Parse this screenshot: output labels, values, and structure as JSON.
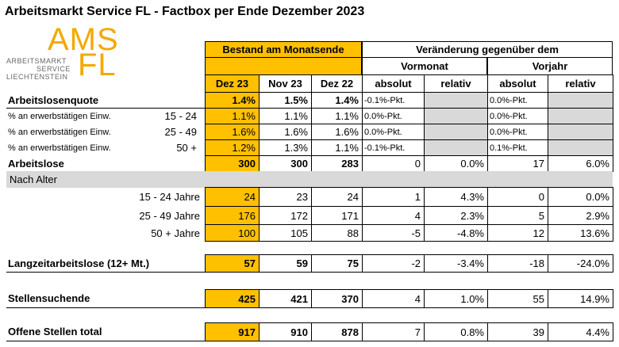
{
  "title": "Arbeitsmarkt Service FL - Factbox per Ende Dezember 2023",
  "logo": {
    "main": "AMS",
    "sub": "FL",
    "lines": [
      "ARBEITSMARKT",
      "SERVICE",
      "LIECHTENSTEIN"
    ]
  },
  "table": {
    "header": {
      "group1": "Bestand am Monatsende",
      "group2": "Veränderung gegenüber dem",
      "sub1": "Vormonat",
      "sub2": "Vorjahr",
      "columns": [
        "Dez 23",
        "Nov 23",
        "Dez 22",
        "absolut",
        "relativ",
        "absolut",
        "relativ"
      ]
    },
    "rows": [
      {
        "label": "Arbeitslosenquote",
        "cells": [
          "1.4%",
          "1.5%",
          "1.4%",
          "-0.1%-Pkt.",
          null,
          "0.0%-Pkt.",
          null
        ]
      },
      {
        "label": "% an erwerbstätigen Einw.",
        "sublabel": "15 - 24",
        "cells": [
          "1.1%",
          "1.1%",
          "1.1%",
          "0.0%-Pkt.",
          null,
          "0.0%-Pkt.",
          null
        ]
      },
      {
        "label": "% an erwerbstätigen Einw.",
        "sublabel": "25 - 49",
        "cells": [
          "1.6%",
          "1.6%",
          "1.6%",
          "0.0%-Pkt.",
          null,
          "0.0%-Pkt.",
          null
        ]
      },
      {
        "label": "% an erwerbstätigen Einw.",
        "sublabel": "50 +",
        "cells": [
          "1.2%",
          "1.3%",
          "1.1%",
          "-0.1%-Pkt.",
          null,
          "0.1%-Pkt.",
          null
        ]
      },
      {
        "label": "Arbeitslose",
        "cells": [
          "300",
          "300",
          "283",
          "0",
          "0.0%",
          "17",
          "6.0%"
        ]
      },
      {
        "label": "Nach Alter"
      },
      {
        "label": "15 - 24 Jahre",
        "cells": [
          "24",
          "23",
          "24",
          "1",
          "4.3%",
          "0",
          "0.0%"
        ]
      },
      {
        "label": "25 - 49 Jahre",
        "cells": [
          "176",
          "172",
          "171",
          "4",
          "2.3%",
          "5",
          "2.9%"
        ]
      },
      {
        "label": "50 + Jahre",
        "cells": [
          "100",
          "105",
          "88",
          "-5",
          "-4.8%",
          "12",
          "13.6%"
        ]
      },
      {
        "label": "Langzeitarbeitslose (12+ Mt.)",
        "cells": [
          "57",
          "59",
          "75",
          "-2",
          "-3.4%",
          "-18",
          "-24.0%"
        ]
      },
      {
        "label": "Stellensuchende",
        "cells": [
          "425",
          "421",
          "370",
          "4",
          "1.0%",
          "55",
          "14.9%"
        ]
      },
      {
        "label": "Offene Stellen total",
        "cells": [
          "917",
          "910",
          "878",
          "7",
          "0.8%",
          "39",
          "4.4%"
        ]
      }
    ]
  }
}
